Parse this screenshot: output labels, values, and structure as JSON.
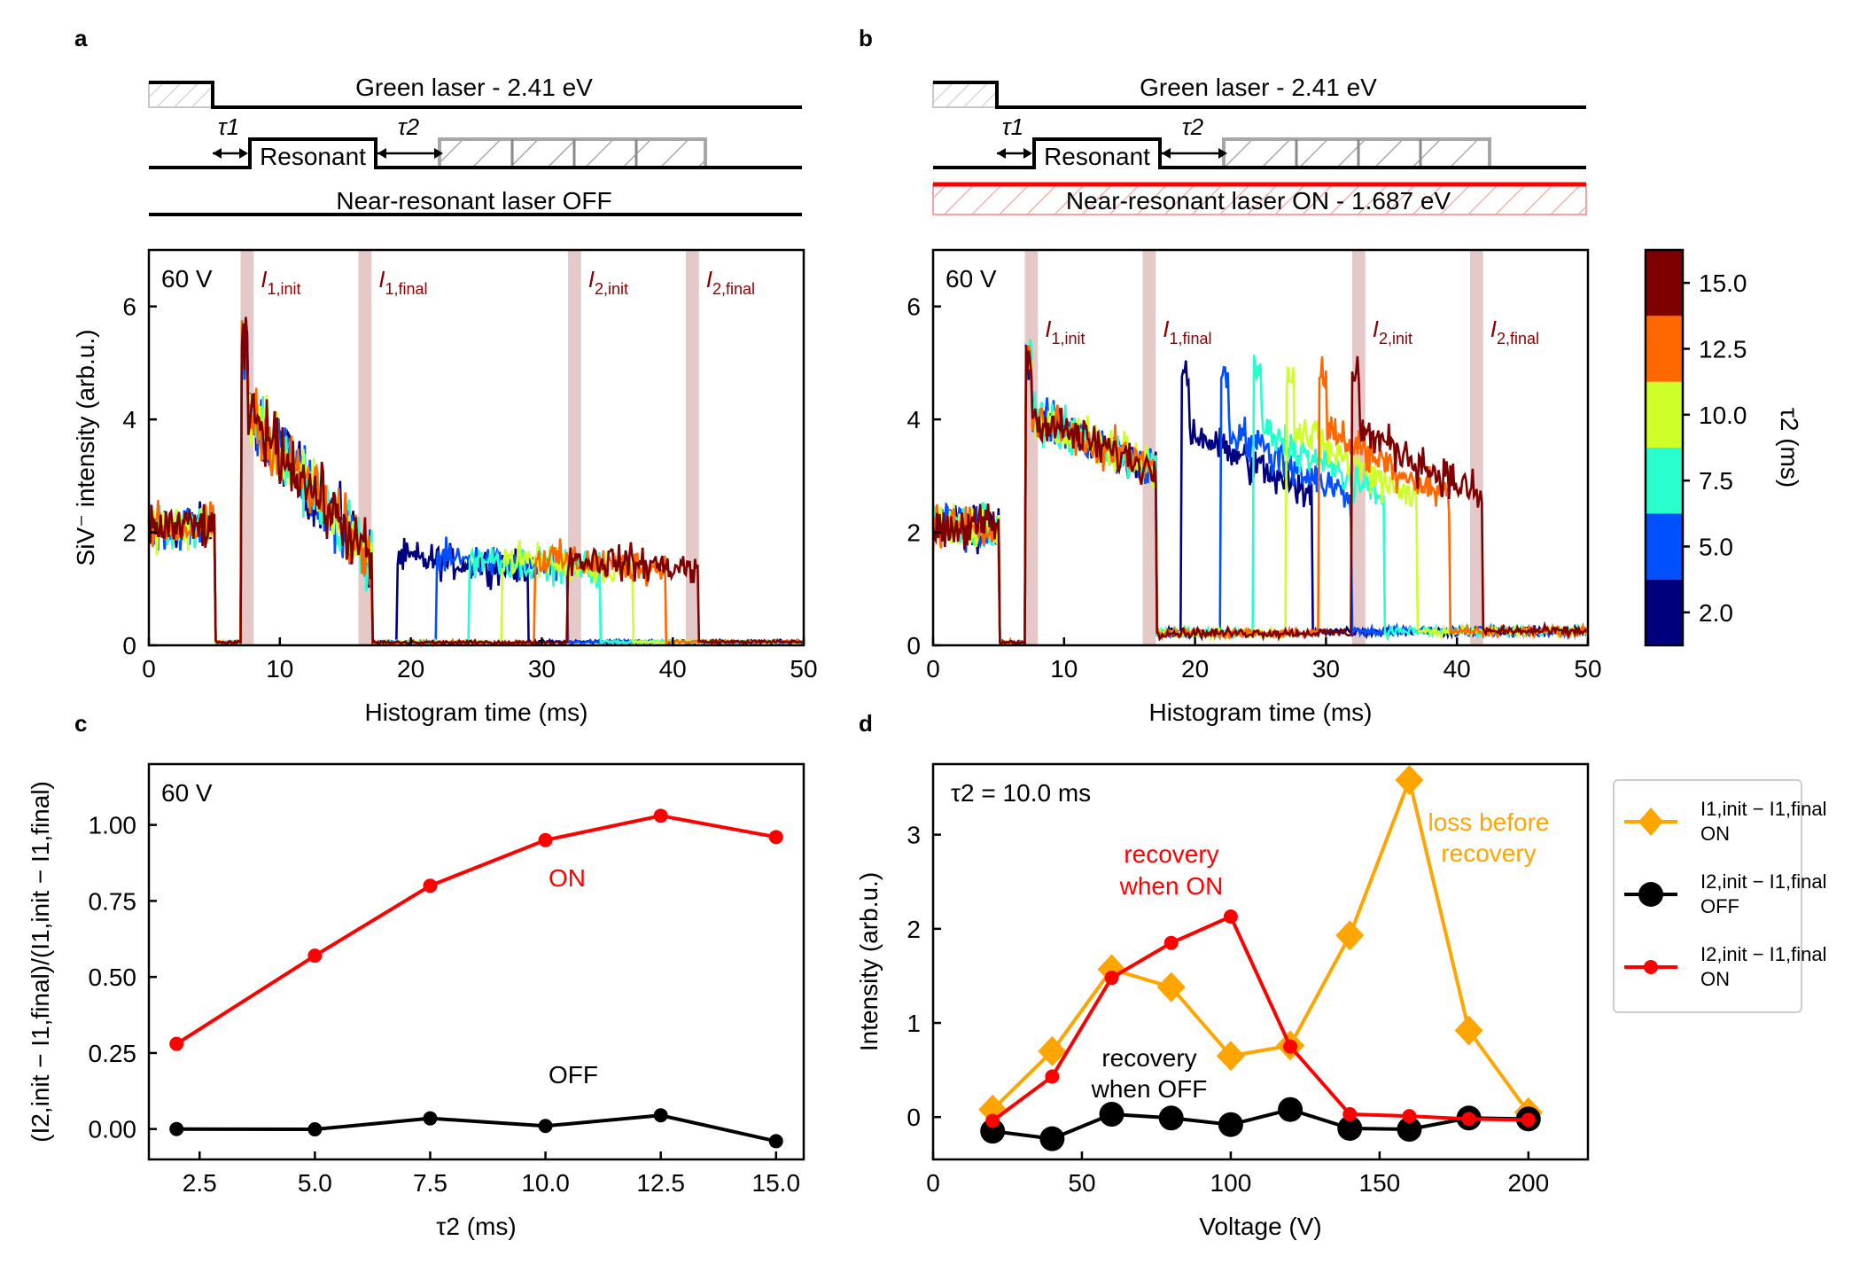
{
  "panel_labels": [
    "a",
    "b",
    "c",
    "d"
  ],
  "colors": {
    "axis": "#000000",
    "on": "#ff0000",
    "off": "#000000",
    "diamond": "#ffa500",
    "annotation_dark_red": "#8b0000",
    "shade": "#b46464",
    "colorbar": [
      "#00007f",
      "#0050ff",
      "#29ffce",
      "#ceff29",
      "#ff6800",
      "#7f0000"
    ]
  },
  "timing": {
    "a": {
      "green_label": "Green laser - 2.41 eV",
      "resonant_label": "Resonant",
      "tau1": "τ1",
      "tau2": "τ2",
      "near_label": "Near-resonant laser OFF"
    },
    "b": {
      "green_label": "Green laser - 2.41 eV",
      "resonant_label": "Resonant",
      "tau1": "τ1",
      "tau2": "τ2",
      "near_label": "Near-resonant laser ON - 1.687 eV"
    }
  },
  "chart_data": [
    {
      "id": "a",
      "type": "line",
      "title": "",
      "corner_label": "60 V",
      "xlabel": "Histogram time (ms)",
      "ylabel": "SiV⁻ intensity (arb.u.)",
      "xlim": [
        0,
        50
      ],
      "ylim": [
        0,
        7
      ],
      "xticks": [
        0,
        10,
        20,
        30,
        40,
        50
      ],
      "yticks": [
        0,
        2,
        4,
        6
      ],
      "windows": [
        {
          "label": "I1,init",
          "range": [
            7,
            8
          ]
        },
        {
          "label": "I1,final",
          "range": [
            16,
            17
          ]
        },
        {
          "label": "I2,init",
          "range": [
            32,
            33
          ]
        },
        {
          "label": "I2,final",
          "range": [
            41,
            42
          ]
        }
      ],
      "series": [
        {
          "name": "2.0",
          "tau2": 2.0,
          "mode": "off"
        },
        {
          "name": "5.0",
          "tau2": 5.0,
          "mode": "off"
        },
        {
          "name": "7.5",
          "tau2": 7.5,
          "mode": "off"
        },
        {
          "name": "10.0",
          "tau2": 10.0,
          "mode": "off"
        },
        {
          "name": "12.5",
          "tau2": 12.5,
          "mode": "off"
        },
        {
          "name": "15.0",
          "tau2": 15.0,
          "mode": "off"
        }
      ]
    },
    {
      "id": "b",
      "type": "line",
      "title": "",
      "corner_label": "60 V",
      "xlabel": "Histogram time (ms)",
      "ylabel": "",
      "xlim": [
        0,
        50
      ],
      "ylim": [
        0,
        7
      ],
      "xticks": [
        0,
        10,
        20,
        30,
        40,
        50
      ],
      "yticks": [
        0,
        2,
        4,
        6
      ],
      "windows": [
        {
          "label": "I1,init",
          "range": [
            7,
            8
          ]
        },
        {
          "label": "I1,final",
          "range": [
            16,
            17
          ]
        },
        {
          "label": "I2,init",
          "range": [
            32,
            33
          ]
        },
        {
          "label": "I2,final",
          "range": [
            41,
            42
          ]
        }
      ],
      "series": [
        {
          "name": "2.0",
          "tau2": 2.0,
          "mode": "on"
        },
        {
          "name": "5.0",
          "tau2": 5.0,
          "mode": "on"
        },
        {
          "name": "7.5",
          "tau2": 7.5,
          "mode": "on"
        },
        {
          "name": "10.0",
          "tau2": 10.0,
          "mode": "on"
        },
        {
          "name": "12.5",
          "tau2": 12.5,
          "mode": "on"
        },
        {
          "name": "15.0",
          "tau2": 15.0,
          "mode": "on"
        }
      ],
      "colorbar": {
        "label": "τ2 (ms)",
        "ticks": [
          "2.0",
          "5.0",
          "7.5",
          "10.0",
          "12.5",
          "15.0"
        ]
      }
    },
    {
      "id": "c",
      "type": "line",
      "corner_label": "60 V",
      "xlabel": "τ2 (ms)",
      "ylabel": "(I2,init − I1,final)/(I1,init − I1,final)",
      "xlim": [
        1.4,
        15.6
      ],
      "ylim": [
        -0.1,
        1.2
      ],
      "xticks": [
        "2.5",
        "5.0",
        "7.5",
        "10.0",
        "12.5",
        "15.0"
      ],
      "yticks": [
        "0.00",
        "0.25",
        "0.50",
        "0.75",
        "1.00"
      ],
      "x": [
        2.0,
        5.0,
        7.5,
        10.0,
        12.5,
        15.0
      ],
      "series": [
        {
          "name": "ON",
          "values": [
            0.28,
            0.57,
            0.8,
            0.95,
            1.03,
            0.96
          ]
        },
        {
          "name": "OFF",
          "values": [
            0.0,
            -0.001,
            0.035,
            0.01,
            0.045,
            -0.04
          ]
        }
      ]
    },
    {
      "id": "d",
      "type": "line",
      "corner_label": "τ2 = 10.0 ms",
      "xlabel": "Voltage (V)",
      "ylabel": "Intensity (arb.u.)",
      "xlim": [
        0,
        220
      ],
      "ylim": [
        -0.45,
        3.75
      ],
      "xticks": [
        0,
        50,
        100,
        150,
        200
      ],
      "yticks": [
        0,
        1,
        2,
        3
      ],
      "x": [
        20,
        40,
        60,
        80,
        100,
        120,
        140,
        160,
        180,
        200
      ],
      "series": [
        {
          "name": "I1,init − I1,final ON",
          "values": [
            0.08,
            0.7,
            1.57,
            1.38,
            0.65,
            0.76,
            1.93,
            3.58,
            0.92,
            0.05
          ]
        },
        {
          "name": "I2,init − I1,final OFF",
          "values": [
            -0.15,
            -0.23,
            0.03,
            -0.01,
            -0.08,
            0.08,
            -0.12,
            -0.13,
            -0.01,
            -0.02
          ]
        },
        {
          "name": "I2,init − I1,final ON",
          "values": [
            -0.04,
            0.43,
            1.48,
            1.85,
            2.13,
            0.75,
            0.03,
            0.01,
            -0.02,
            -0.03
          ]
        }
      ],
      "annotations": [
        "recovery when ON",
        "recovery when OFF",
        "loss before recovery"
      ],
      "legend": [
        {
          "line1": "I1,init − I1,final",
          "line2": "ON"
        },
        {
          "line1": "I2,init − I1,final",
          "line2": "OFF"
        },
        {
          "line1": "I2,init − I1,final",
          "line2": "ON"
        }
      ]
    }
  ],
  "text": {
    "c_on": "ON",
    "c_off": "OFF",
    "d_rec_on_1": "recovery",
    "d_rec_on_2": "when ON",
    "d_rec_off_1": "recovery",
    "d_rec_off_2": "when OFF",
    "d_loss_1": "loss before",
    "d_loss_2": "recovery"
  }
}
